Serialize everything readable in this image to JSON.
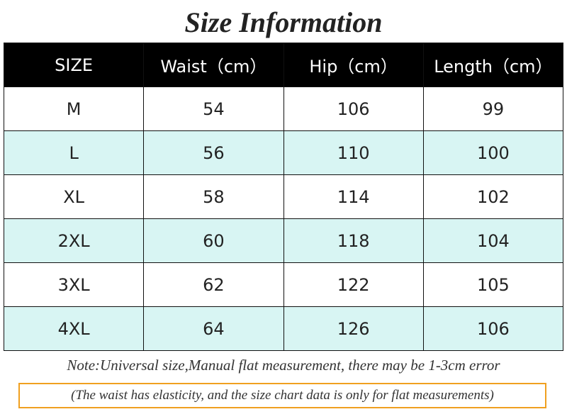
{
  "title": "Size Information",
  "table": {
    "header": [
      "SIZE",
      "Waist（cm）",
      "Hip（cm）",
      "Length（cm）"
    ],
    "rows": [
      [
        "M",
        "54",
        "106",
        "99"
      ],
      [
        "L",
        "56",
        "110",
        "100"
      ],
      [
        "XL",
        "58",
        "114",
        "102"
      ],
      [
        "2XL",
        "60",
        "118",
        "104"
      ],
      [
        "3XL",
        "62",
        "122",
        "105"
      ],
      [
        "4XL",
        "64",
        "126",
        "106"
      ]
    ]
  },
  "note": "Note:Universal size,Manual flat measurement, there may be 1-3cm error",
  "remark": "(The waist has elasticity, and the size chart data is only for flat measurements)"
}
